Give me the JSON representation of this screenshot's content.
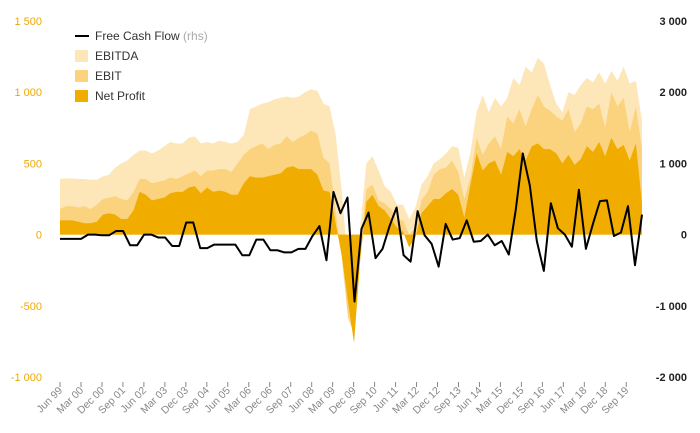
{
  "chart_data": {
    "type": "area",
    "legend_position": "top-left",
    "legend": [
      {
        "key": "fcf",
        "label": "Free Cash Flow",
        "note": "(rhs)",
        "color": "#000000",
        "kind": "line"
      },
      {
        "key": "ebitda",
        "label": "EBITDA",
        "color": "#fde7b8",
        "kind": "area"
      },
      {
        "key": "ebit",
        "label": "EBIT",
        "color": "#fbd27d",
        "kind": "area"
      },
      {
        "key": "net_profit",
        "label": "Net Profit",
        "color": "#f0ad00",
        "kind": "area"
      }
    ],
    "y_left": {
      "min": -1000,
      "max": 1500,
      "ticks": [
        1500,
        1000,
        500,
        0,
        -500,
        -1000
      ],
      "tick_labels": [
        "1 500",
        "1 000",
        "500",
        "0",
        "-500",
        "-1 000"
      ],
      "color": "#f0a800"
    },
    "y_right": {
      "min": -2000,
      "max": 3000,
      "ticks": [
        3000,
        2000,
        1000,
        0,
        -1000,
        -2000
      ],
      "tick_labels": [
        "3 000",
        "2 000",
        "1 000",
        "0",
        "-1 000",
        "-2 000"
      ],
      "color": "#222222"
    },
    "x_tick_labels": [
      "Jun 99",
      "Mar 00",
      "Dec 00",
      "Sep 01",
      "Jun 02",
      "Mar 03",
      "Dec 03",
      "Sep 04",
      "Jun 05",
      "Mar 06",
      "Dec 06",
      "Sep 07",
      "Jun 08",
      "Mar 09",
      "Dec 09",
      "Sep 10",
      "Jun 11",
      "Mar 12",
      "Dec 12",
      "Sep 13",
      "Jun 14",
      "Mar 15",
      "Dec 15",
      "Sep 16",
      "Jun 17",
      "Mar 18",
      "Dec 18",
      "Sep 19"
    ],
    "grid": false,
    "series": [
      {
        "name": "EBITDA",
        "axis": "left",
        "values": [
          390,
          395,
          395,
          390,
          390,
          385,
          385,
          410,
          420,
          470,
          500,
          520,
          560,
          590,
          590,
          570,
          590,
          620,
          650,
          640,
          640,
          680,
          690,
          640,
          650,
          640,
          660,
          650,
          640,
          650,
          700,
          880,
          900,
          920,
          930,
          950,
          960,
          970,
          960,
          970,
          1000,
          1020,
          1010,
          920,
          900,
          700,
          300,
          -200,
          -320,
          50,
          500,
          550,
          450,
          340,
          300,
          210,
          210,
          110,
          190,
          350,
          410,
          500,
          530,
          570,
          620,
          610,
          400,
          580,
          860,
          980,
          860,
          960,
          900,
          960,
          1100,
          1050,
          1180,
          1140,
          1240,
          1200,
          1050,
          920,
          860,
          1000,
          980,
          1050,
          1100,
          1070,
          1140,
          1060,
          1150,
          1080,
          1180,
          1060,
          1080,
          800
        ]
      },
      {
        "name": "EBIT",
        "axis": "left",
        "values": [
          180,
          200,
          200,
          190,
          200,
          180,
          210,
          250,
          260,
          270,
          250,
          240,
          300,
          390,
          390,
          360,
          370,
          380,
          400,
          390,
          410,
          430,
          450,
          410,
          450,
          450,
          460,
          460,
          440,
          500,
          560,
          600,
          620,
          640,
          600,
          630,
          640,
          690,
          650,
          680,
          700,
          730,
          710,
          540,
          500,
          160,
          -160,
          -580,
          -700,
          -130,
          320,
          350,
          240,
          220,
          180,
          100,
          100,
          0,
          50,
          240,
          300,
          420,
          460,
          470,
          520,
          440,
          250,
          400,
          680,
          560,
          640,
          690,
          600,
          830,
          780,
          880,
          760,
          880,
          980,
          900,
          870,
          830,
          800,
          880,
          720,
          780,
          900,
          880,
          920,
          750,
          1000,
          900,
          960,
          720,
          900,
          600
        ]
      },
      {
        "name": "Net Profit",
        "axis": "left",
        "values": [
          100,
          100,
          100,
          90,
          80,
          80,
          90,
          140,
          150,
          140,
          110,
          110,
          170,
          300,
          280,
          240,
          250,
          260,
          290,
          300,
          300,
          330,
          340,
          290,
          330,
          300,
          310,
          300,
          280,
          280,
          360,
          410,
          400,
          400,
          410,
          420,
          430,
          470,
          480,
          460,
          460,
          460,
          420,
          310,
          300,
          80,
          -150,
          -470,
          -760,
          -180,
          230,
          280,
          200,
          170,
          110,
          50,
          20,
          -90,
          -20,
          150,
          200,
          250,
          250,
          290,
          320,
          280,
          120,
          350,
          570,
          450,
          500,
          520,
          420,
          580,
          550,
          600,
          520,
          620,
          640,
          600,
          600,
          570,
          500,
          560,
          490,
          530,
          620,
          580,
          650,
          550,
          680,
          600,
          630,
          520,
          640,
          220
        ]
      },
      {
        "name": "Free Cash Flow",
        "axis": "right",
        "values": [
          -60,
          -60,
          -60,
          -60,
          0,
          0,
          -10,
          -10,
          50,
          50,
          -150,
          -150,
          0,
          0,
          -40,
          -40,
          -160,
          -160,
          170,
          170,
          -190,
          -190,
          -140,
          -140,
          -140,
          -140,
          -290,
          -290,
          -70,
          -70,
          -220,
          -220,
          -250,
          -250,
          -200,
          -200,
          -20,
          120,
          -360,
          600,
          300,
          520,
          -940,
          80,
          310,
          -330,
          -200,
          120,
          380,
          -290,
          -380,
          330,
          -10,
          -130,
          -450,
          150,
          -70,
          -50,
          200,
          -100,
          -90,
          0,
          -150,
          -90,
          -280,
          350,
          1140,
          690,
          -90,
          -510,
          440,
          90,
          0,
          -170,
          630,
          -200,
          150,
          470,
          480,
          -20,
          30,
          400,
          -430,
          280
        ]
      }
    ]
  }
}
